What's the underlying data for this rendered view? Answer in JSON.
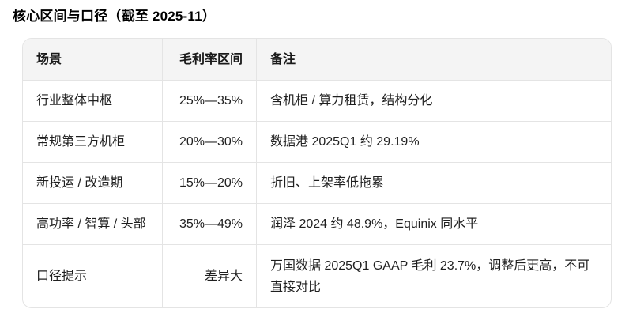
{
  "title": "核心区间与口径（截至 2025-11）",
  "table": {
    "headers": {
      "scenario": "场景",
      "range": "毛利率区间",
      "note": "备注"
    },
    "rows": [
      {
        "scenario": "行业整体中枢",
        "range": "25%—35%",
        "note": "含机柜 / 算力租赁，结构分化"
      },
      {
        "scenario": "常规第三方机柜",
        "range": "20%—30%",
        "note": "数据港 2025Q1 约 29.19%"
      },
      {
        "scenario": "新投运 / 改造期",
        "range": "15%—20%",
        "note": "折旧、上架率低拖累"
      },
      {
        "scenario": "高功率 / 智算 / 头部",
        "range": "35%—49%",
        "note": "润泽 2024 约 48.9%，Equinix 同水平"
      },
      {
        "scenario": "口径提示",
        "range": "差异大",
        "note": "万国数据 2025Q1 GAAP 毛利 23.7%，调整后更高，不可直接对比"
      }
    ]
  },
  "colors": {
    "header_bg": "#f4f4f4",
    "border": "#e4e4e4",
    "text": "#1f1f1f",
    "title_text": "#000000"
  }
}
